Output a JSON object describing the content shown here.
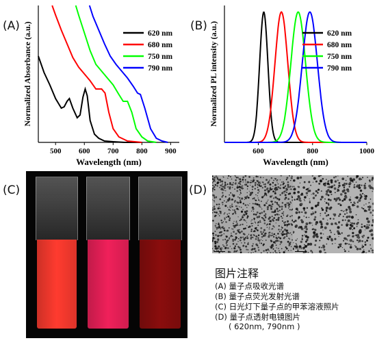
{
  "panel_labels": {
    "a": "(A)",
    "b": "(B)",
    "c": "(C)",
    "d": "(D)"
  },
  "chart_data": [
    {
      "type": "line",
      "panel": "(A)",
      "title": "",
      "xlabel": "Wavelength (nm)",
      "ylabel": "Normalized Absorbance (a.u.)",
      "xlim": [
        440,
        930
      ],
      "ylim": [
        0,
        1
      ],
      "x_ticks": [
        500,
        600,
        700,
        800,
        900
      ],
      "grid": false,
      "legend_position": "top-right",
      "series": [
        {
          "name": "620 nm",
          "color": "#000000",
          "x": [
            440,
            460,
            480,
            500,
            520,
            530,
            540,
            548,
            560,
            575,
            585,
            595,
            603,
            610,
            620,
            635,
            650,
            670,
            700,
            740,
            800
          ],
          "y": [
            0.63,
            0.51,
            0.42,
            0.32,
            0.25,
            0.26,
            0.3,
            0.32,
            0.25,
            0.18,
            0.2,
            0.33,
            0.39,
            0.34,
            0.16,
            0.06,
            0.03,
            0.01,
            0.005,
            0.0,
            0.0
          ]
        },
        {
          "name": "680 nm",
          "color": "#ff0000",
          "x": [
            488,
            500,
            520,
            540,
            560,
            580,
            600,
            620,
            640,
            660,
            672,
            685,
            700,
            720,
            750,
            800
          ],
          "y": [
            1.0,
            0.93,
            0.82,
            0.72,
            0.62,
            0.55,
            0.5,
            0.45,
            0.39,
            0.39,
            0.36,
            0.22,
            0.1,
            0.04,
            0.01,
            0.0
          ]
        },
        {
          "name": "750 nm",
          "color": "#00ff00",
          "x": [
            570,
            580,
            600,
            620,
            640,
            660,
            680,
            700,
            720,
            735,
            750,
            765,
            780,
            800,
            820,
            850
          ],
          "y": [
            1.0,
            0.93,
            0.8,
            0.67,
            0.57,
            0.52,
            0.47,
            0.42,
            0.35,
            0.3,
            0.3,
            0.22,
            0.1,
            0.04,
            0.01,
            0.0
          ]
        },
        {
          "name": "790 nm",
          "color": "#0000ff",
          "x": [
            618,
            630,
            650,
            670,
            690,
            710,
            730,
            750,
            770,
            785,
            795,
            810,
            830,
            850,
            870,
            890
          ],
          "y": [
            1.0,
            0.92,
            0.82,
            0.72,
            0.63,
            0.57,
            0.52,
            0.47,
            0.41,
            0.36,
            0.35,
            0.25,
            0.1,
            0.03,
            0.01,
            0.0
          ]
        }
      ]
    },
    {
      "type": "line",
      "panel": "(B)",
      "title": "",
      "xlabel": "Wavelength (nm)",
      "ylabel": "Normalized PL intensity (a.u.)",
      "xlim": [
        475,
        1000
      ],
      "ylim": [
        0,
        1.05
      ],
      "x_ticks": [
        600,
        800,
        1000
      ],
      "grid": false,
      "legend_position": "top-right",
      "series": [
        {
          "name": "620 nm",
          "color": "#000000",
          "peak": 620,
          "fwhm": 36
        },
        {
          "name": "680 nm",
          "color": "#ff0000",
          "peak": 685,
          "fwhm": 56
        },
        {
          "name": "750 nm",
          "color": "#00ff00",
          "peak": 747,
          "fwhm": 64
        },
        {
          "name": "790 nm",
          "color": "#0000ff",
          "peak": 790,
          "fwhm": 66
        }
      ]
    }
  ],
  "photo": {
    "cuvettes": [
      {
        "name": "620 nm",
        "color": "#ff3b2f"
      },
      {
        "name": "680 nm",
        "color": "#f0205a"
      },
      {
        "name": "750 nm",
        "color": "#8a0d0d"
      }
    ]
  },
  "tem": {
    "scale_label": "30 nm"
  },
  "caption": {
    "title": "图片注释",
    "items": [
      "(A) 量子点吸收光谱",
      "(B) 量子点荧光发射光谱",
      "(C) 日光灯下量子点的甲苯溶液照片",
      "(D) 量子点透射电镜图片",
      "( 620nm, 790nm )"
    ]
  }
}
